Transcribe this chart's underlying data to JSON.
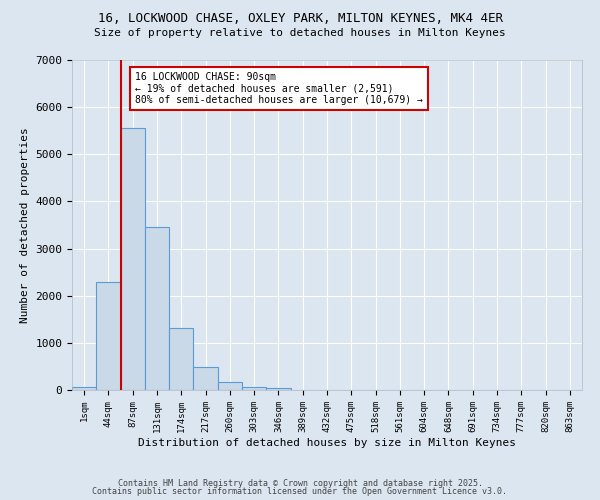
{
  "title_line1": "16, LOCKWOOD CHASE, OXLEY PARK, MILTON KEYNES, MK4 4ER",
  "title_line2": "Size of property relative to detached houses in Milton Keynes",
  "xlabel": "Distribution of detached houses by size in Milton Keynes",
  "ylabel": "Number of detached properties",
  "bin_labels": [
    "1sqm",
    "44sqm",
    "87sqm",
    "131sqm",
    "174sqm",
    "217sqm",
    "260sqm",
    "303sqm",
    "346sqm",
    "389sqm",
    "432sqm",
    "475sqm",
    "518sqm",
    "561sqm",
    "604sqm",
    "648sqm",
    "691sqm",
    "734sqm",
    "777sqm",
    "820sqm",
    "863sqm"
  ],
  "bar_values": [
    70,
    2300,
    5550,
    3460,
    1320,
    480,
    160,
    70,
    50,
    0,
    0,
    0,
    0,
    0,
    0,
    0,
    0,
    0,
    0,
    0,
    0
  ],
  "bar_color": "#c9d9e8",
  "bar_edgecolor": "#5b9bd5",
  "vline_x_index": 2,
  "vline_color": "#cc0000",
  "ylim": [
    0,
    7000
  ],
  "annotation_text": "16 LOCKWOOD CHASE: 90sqm\n← 19% of detached houses are smaller (2,591)\n80% of semi-detached houses are larger (10,679) →",
  "annotation_box_color": "#ffffff",
  "annotation_box_edgecolor": "#cc0000",
  "footnote1": "Contains HM Land Registry data © Crown copyright and database right 2025.",
  "footnote2": "Contains public sector information licensed under the Open Government Licence v3.0.",
  "background_color": "#dce6f0",
  "plot_background": "#dce6f0",
  "grid_color": "#ffffff",
  "yticks": [
    0,
    1000,
    2000,
    3000,
    4000,
    5000,
    6000,
    7000
  ]
}
